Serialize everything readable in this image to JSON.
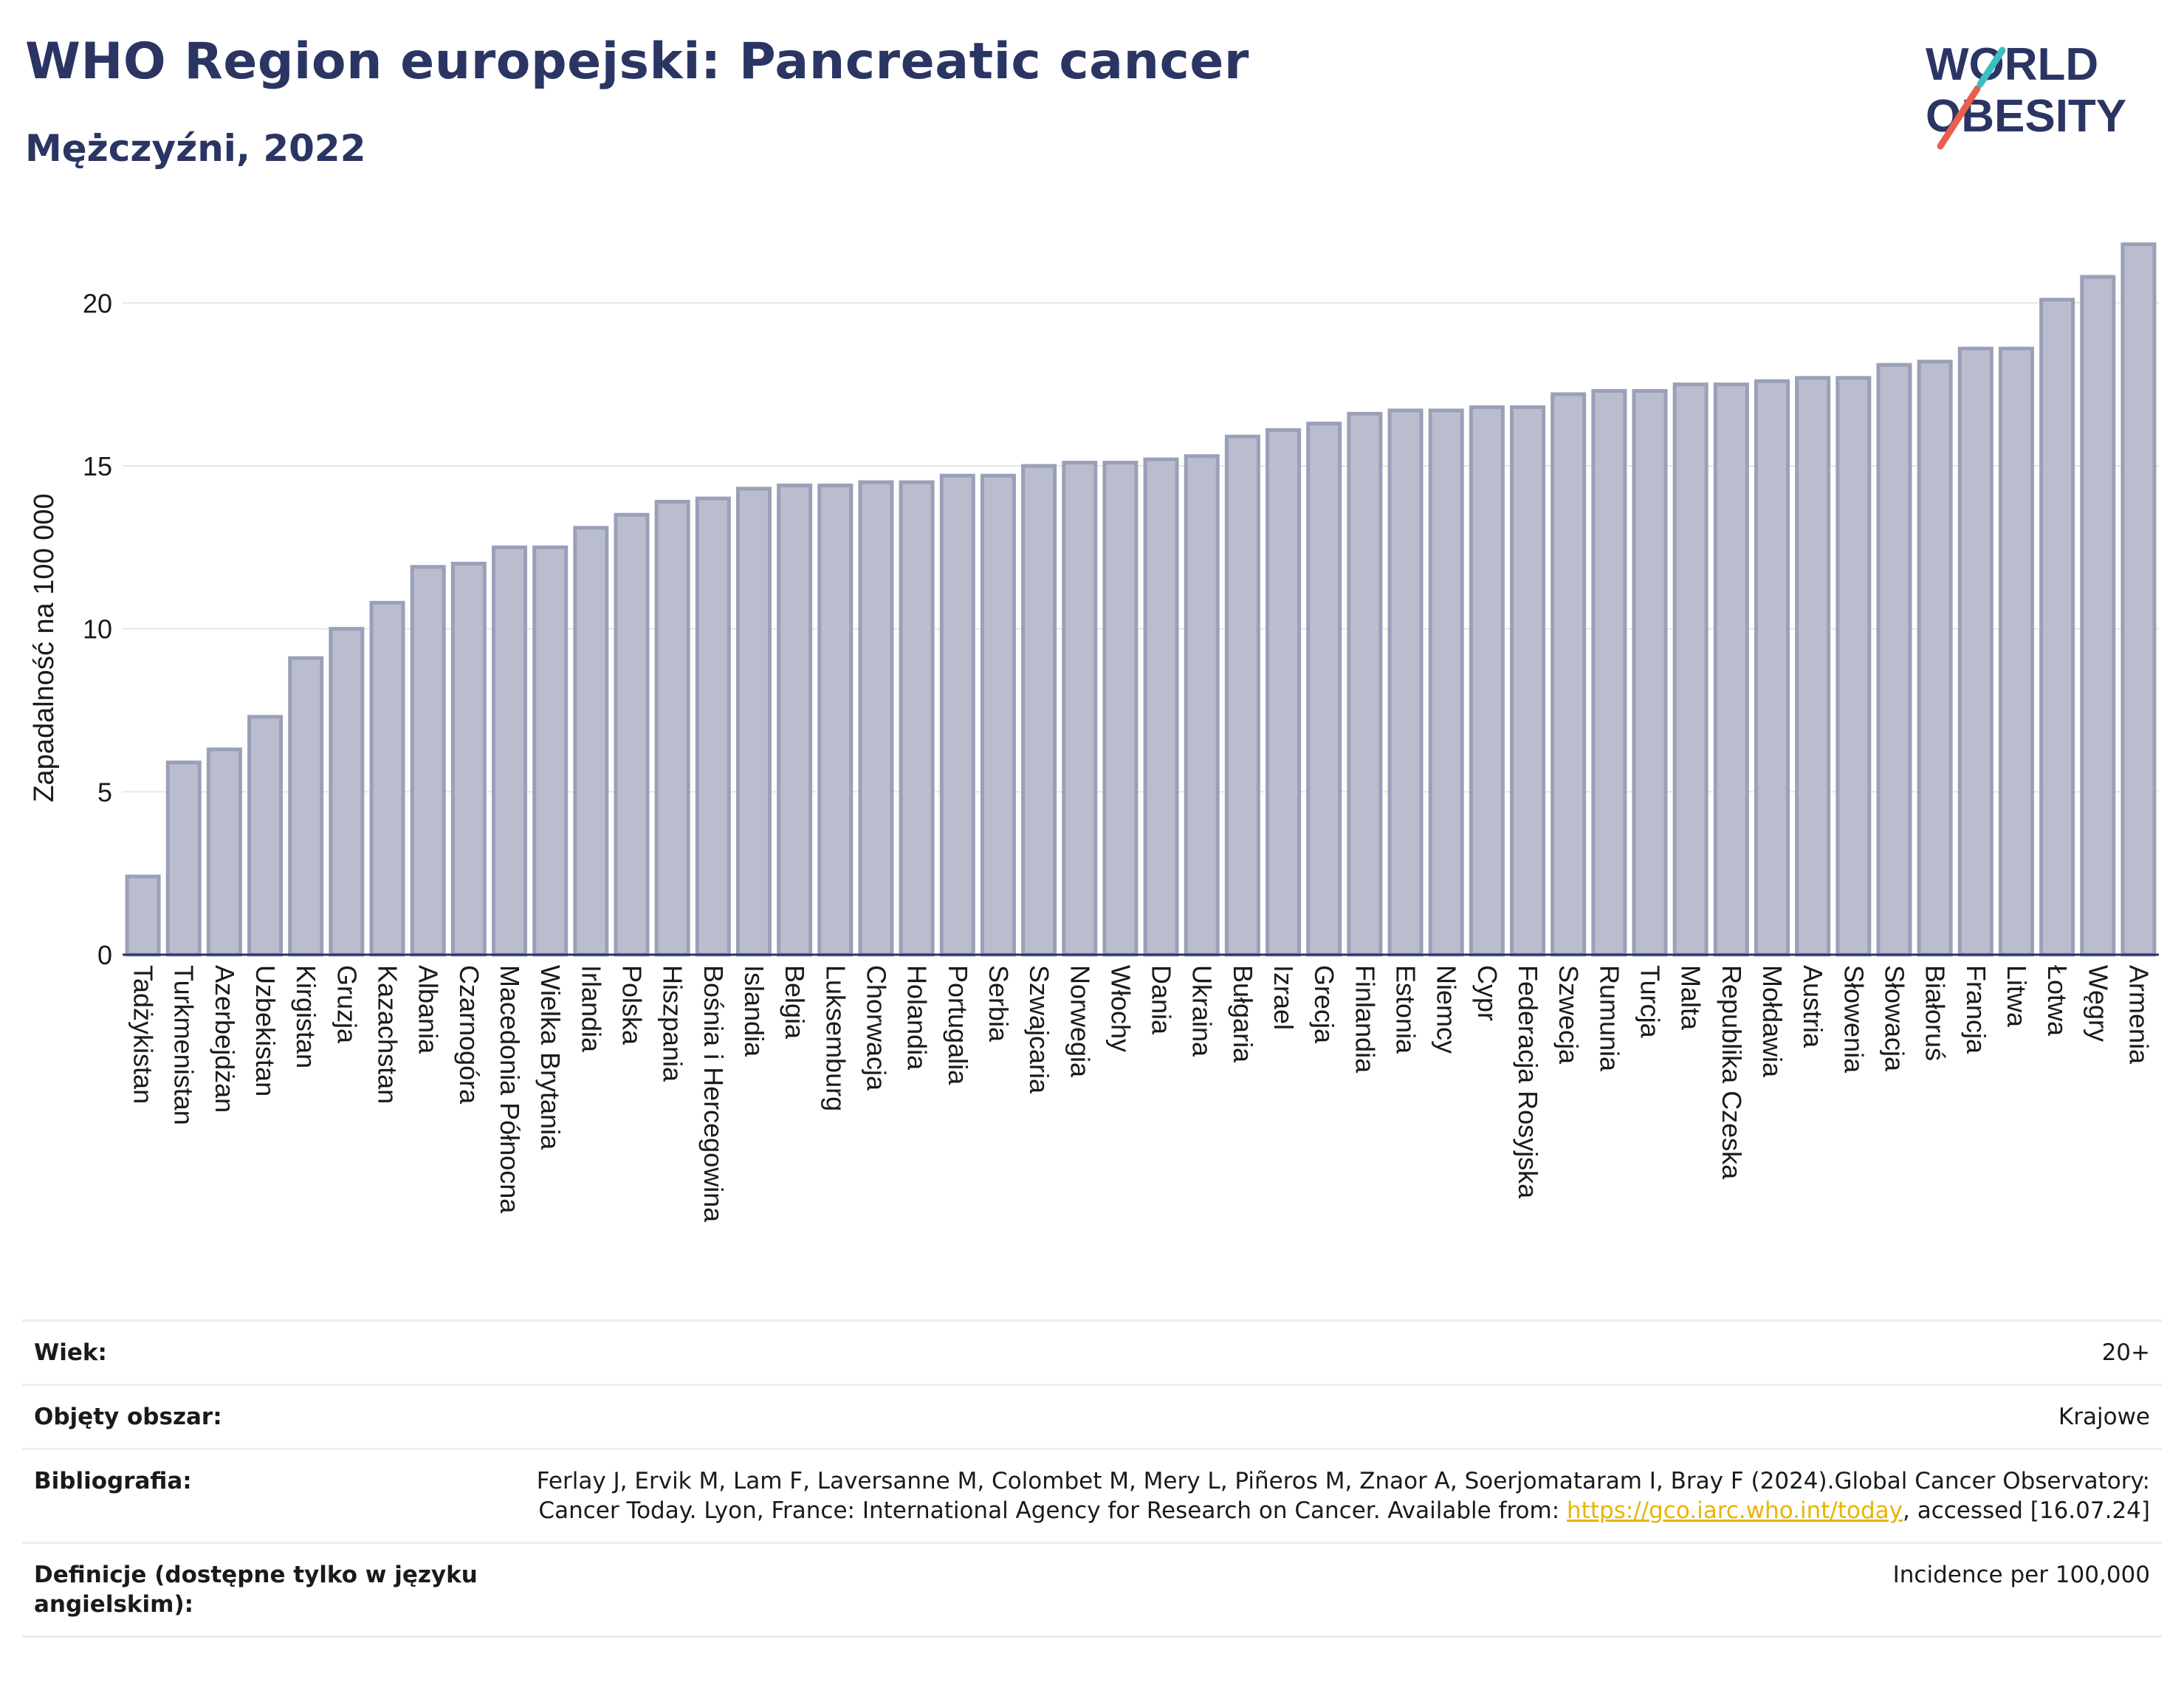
{
  "header": {
    "title": "WHO Region europejski: Pancreatic cancer",
    "subtitle": "Mężczyźni, 2022"
  },
  "logo": {
    "line1": "WORLD",
    "line2": "OBESITY",
    "colors": {
      "text": "#2b3563",
      "slash_red": "#e8604c",
      "slash_teal": "#3bbfc0"
    }
  },
  "chart_data": {
    "type": "bar",
    "title": "",
    "xlabel": "",
    "ylabel": "Zapadalność na 100 000",
    "ylim": [
      0,
      22
    ],
    "yticks": [
      0,
      5,
      10,
      15,
      20
    ],
    "grid": true,
    "bar_color": "#b9bdce",
    "bar_edge_color": "#9aa0b8",
    "categories": [
      "Tadżykistan",
      "Turkmenistan",
      "Azerbejdżan",
      "Uzbekistan",
      "Kirgistan",
      "Gruzja",
      "Kazachstan",
      "Albania",
      "Czarnogóra",
      "Macedonia Północna",
      "Wielka Brytania",
      "Irlandia",
      "Polska",
      "Hiszpania",
      "Bośnia i Hercegowina",
      "Islandia",
      "Belgia",
      "Luksemburg",
      "Chorwacja",
      "Holandia",
      "Portugalia",
      "Serbia",
      "Szwajcaria",
      "Norwegia",
      "Włochy",
      "Dania",
      "Ukraina",
      "Bułgaria",
      "Izrael",
      "Grecja",
      "Finlandia",
      "Estonia",
      "Niemcy",
      "Cypr",
      "Federacja Rosyjska",
      "Szwecja",
      "Rumunia",
      "Turcja",
      "Malta",
      "Republika Czeska",
      "Mołdawia",
      "Austria",
      "Słowenia",
      "Słowacja",
      "Białoruś",
      "Francja",
      "Litwa",
      "Łotwa",
      "Węgry",
      "Armenia"
    ],
    "values": [
      2.4,
      5.9,
      6.3,
      7.3,
      9.1,
      10.0,
      10.8,
      11.9,
      12.0,
      12.5,
      12.5,
      13.1,
      13.5,
      13.9,
      14.0,
      14.3,
      14.4,
      14.4,
      14.5,
      14.5,
      14.7,
      14.7,
      15.0,
      15.1,
      15.1,
      15.2,
      15.3,
      15.9,
      16.1,
      16.3,
      16.6,
      16.7,
      16.7,
      16.8,
      16.8,
      17.2,
      17.3,
      17.3,
      17.5,
      17.5,
      17.6,
      17.7,
      17.7,
      18.1,
      18.2,
      18.6,
      18.6,
      20.1,
      20.8,
      21.8
    ]
  },
  "meta": {
    "rows": [
      {
        "label": "Wiek:",
        "value": "20+"
      },
      {
        "label": "Objęty obszar:",
        "value": "Krajowe"
      },
      {
        "label": "Bibliografia:",
        "value_pre": "Ferlay J, Ervik M, Lam F, Laversanne M, Colombet M, Mery L, Piñeros M, Znaor A, Soerjomataram I, Bray F (2024).Global Cancer Observatory: Cancer Today. Lyon, France: International Agency for Research on Cancer. Available from: ",
        "link": "https://gco.iarc.who.int/today",
        "value_post": ", accessed [16.07.24]"
      },
      {
        "label": "Definicje (dostępne tylko w języku angielskim):",
        "value": "Incidence per 100,000"
      }
    ]
  }
}
